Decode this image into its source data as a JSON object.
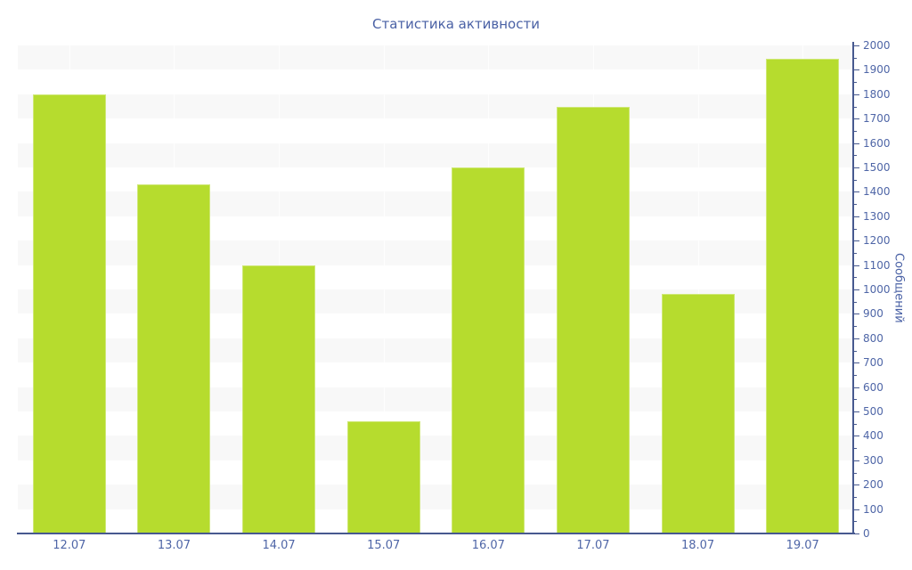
{
  "chart_data": {
    "type": "bar",
    "title": "Статистика активности",
    "categories": [
      "12.07",
      "13.07",
      "14.07",
      "15.07",
      "16.07",
      "17.07",
      "18.07",
      "19.07"
    ],
    "values": [
      1800,
      1430,
      1100,
      460,
      1500,
      1750,
      980,
      1945
    ],
    "xlabel": "",
    "ylabel": "Сообщений",
    "ylim": [
      0,
      2000
    ],
    "y_tick_step": 100,
    "y_minor_tick_step": 50,
    "axis_position": "right",
    "grid": "alternating-horizontal-bands",
    "legend": "none",
    "colors": {
      "bar": "#b6dc2e",
      "band": "#f8f8f8",
      "axis_line": "#47598f",
      "text": "#4f66a7",
      "title_text": "#4a61a5",
      "background": "#ffffff"
    }
  }
}
